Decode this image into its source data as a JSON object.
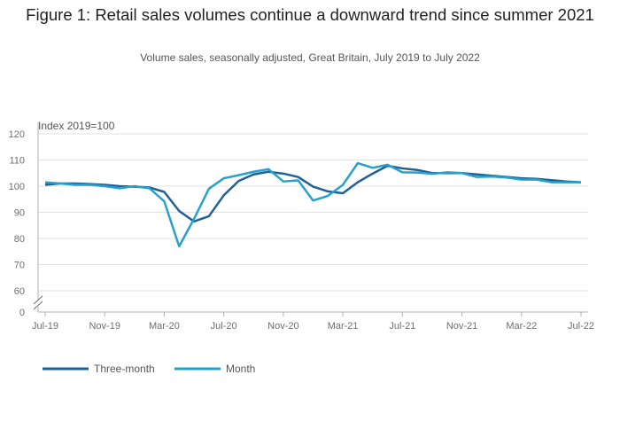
{
  "chart_data": {
    "type": "line",
    "title": "Figure 1: Retail sales volumes continue a downward trend since summer 2021",
    "subtitle": "Volume sales, seasonally adjusted, Great Britain, July 2019 to July 2022",
    "ylabel": "Index 2019=100",
    "ylim": [
      60,
      120
    ],
    "y_break": true,
    "y_ticks": [
      "120",
      "110",
      "100",
      "90",
      "80",
      "70",
      "60",
      "0"
    ],
    "x_tick_labels": [
      "Jul-19",
      "Nov-19",
      "Mar-20",
      "Jul-20",
      "Nov-20",
      "Mar-21",
      "Jul-21",
      "Nov-21",
      "Mar-22",
      "Jul-22"
    ],
    "x": [
      "Jul-19",
      "Aug-19",
      "Sep-19",
      "Oct-19",
      "Nov-19",
      "Dec-19",
      "Jan-20",
      "Feb-20",
      "Mar-20",
      "Apr-20",
      "May-20",
      "Jun-20",
      "Jul-20",
      "Aug-20",
      "Sep-20",
      "Oct-20",
      "Nov-20",
      "Dec-20",
      "Jan-21",
      "Feb-21",
      "Mar-21",
      "Apr-21",
      "May-21",
      "Jun-21",
      "Jul-21",
      "Aug-21",
      "Sep-21",
      "Oct-21",
      "Nov-21",
      "Dec-21",
      "Jan-22",
      "Feb-22",
      "Mar-22",
      "Apr-22",
      "May-22",
      "Jun-22",
      "Jul-22"
    ],
    "grid": true,
    "legend_position": "bottom-left",
    "series": [
      {
        "name": "Three-month",
        "color": "#206095",
        "values": [
          100.5,
          101.0,
          101.0,
          100.8,
          100.5,
          100.0,
          99.8,
          99.5,
          97.8,
          90.5,
          86.5,
          88.5,
          96.5,
          102.0,
          104.5,
          105.5,
          104.8,
          103.5,
          99.8,
          98.0,
          97.3,
          101.5,
          104.8,
          107.8,
          106.8,
          106.2,
          105.0,
          105.0,
          105.0,
          104.5,
          104.0,
          103.5,
          103.0,
          102.8,
          102.3,
          101.8,
          101.5
        ]
      },
      {
        "name": "Month",
        "color": "#27a0cc",
        "values": [
          101.5,
          101.0,
          100.5,
          100.5,
          100.0,
          99.2,
          100.0,
          99.2,
          94.2,
          77.0,
          87.5,
          99.0,
          103.0,
          104.2,
          105.5,
          106.5,
          101.8,
          102.2,
          94.5,
          96.3,
          100.5,
          108.8,
          107.0,
          108.2,
          105.3,
          105.2,
          104.7,
          105.3,
          105.0,
          103.5,
          103.7,
          103.3,
          102.5,
          102.5,
          101.5,
          101.5,
          101.5
        ]
      }
    ]
  }
}
